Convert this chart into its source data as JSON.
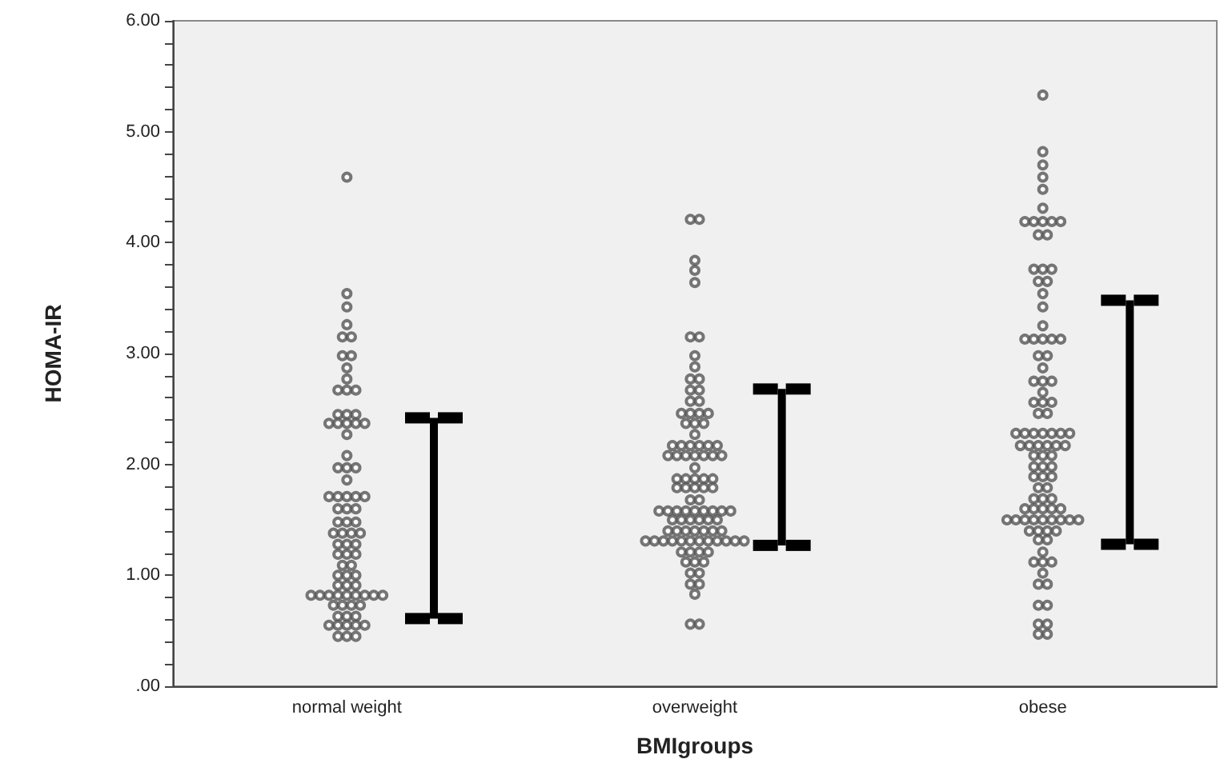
{
  "chart_data": {
    "type": "scatter",
    "xlabel": "BMIgroups",
    "ylabel": "HOMA-IR",
    "categories": [
      "normal weight",
      "overweight",
      "obese"
    ],
    "ylim": [
      0,
      6
    ],
    "yticks": [
      {
        "value": 0,
        "label": ".00"
      },
      {
        "value": 0.2,
        "label": null
      },
      {
        "value": 0.4,
        "label": null
      },
      {
        "value": 0.6,
        "label": null
      },
      {
        "value": 0.8,
        "label": null
      },
      {
        "value": 1,
        "label": "1.00"
      },
      {
        "value": 1.2,
        "label": null
      },
      {
        "value": 1.4,
        "label": null
      },
      {
        "value": 1.6,
        "label": null
      },
      {
        "value": 1.8,
        "label": null
      },
      {
        "value": 2,
        "label": "2.00"
      },
      {
        "value": 2.2,
        "label": null
      },
      {
        "value": 2.4,
        "label": null
      },
      {
        "value": 2.6,
        "label": null
      },
      {
        "value": 2.8,
        "label": null
      },
      {
        "value": 3,
        "label": "3.00"
      },
      {
        "value": 3.2,
        "label": null
      },
      {
        "value": 3.4,
        "label": null
      },
      {
        "value": 3.6,
        "label": null
      },
      {
        "value": 3.8,
        "label": null
      },
      {
        "value": 4,
        "label": "4.00"
      },
      {
        "value": 4.2,
        "label": null
      },
      {
        "value": 4.4,
        "label": null
      },
      {
        "value": 4.6,
        "label": null
      },
      {
        "value": 4.8,
        "label": null
      },
      {
        "value": 5,
        "label": "5.00"
      },
      {
        "value": 5.2,
        "label": null
      },
      {
        "value": 5.4,
        "label": null
      },
      {
        "value": 5.6,
        "label": null
      },
      {
        "value": 5.8,
        "label": null
      },
      {
        "value": 6,
        "label": "6.00"
      }
    ],
    "grid": false,
    "series": [
      {
        "marker": "circle",
        "color": "#555555",
        "x": [
          "normal weight",
          "normal weight",
          "normal weight",
          "normal weight",
          "normal weight",
          "normal weight",
          "normal weight",
          "normal weight",
          "normal weight",
          "normal weight",
          "normal weight",
          "normal weight",
          "normal weight",
          "normal weight",
          "normal weight",
          "normal weight",
          "normal weight",
          "normal weight",
          "normal weight",
          "normal weight",
          "normal weight",
          "normal weight",
          "normal weight",
          "normal weight",
          "normal weight",
          "normal weight",
          "normal weight",
          "normal weight",
          "normal weight",
          "normal weight",
          "normal weight",
          "normal weight",
          "normal weight",
          "normal weight",
          "normal weight",
          "normal weight",
          "normal weight",
          "normal weight",
          "normal weight",
          "normal weight",
          "normal weight",
          "normal weight",
          "normal weight",
          "normal weight",
          "normal weight",
          "normal weight",
          "normal weight",
          "normal weight",
          "normal weight",
          "normal weight",
          "normal weight",
          "normal weight",
          "normal weight",
          "normal weight",
          "normal weight",
          "normal weight",
          "normal weight",
          "normal weight",
          "normal weight",
          "normal weight",
          "normal weight",
          "normal weight",
          "normal weight",
          "normal weight",
          "normal weight",
          "normal weight",
          "normal weight",
          "normal weight",
          "normal weight",
          "normal weight",
          "normal weight",
          "normal weight",
          "normal weight",
          "normal weight",
          "normal weight",
          "normal weight",
          "normal weight",
          "normal weight",
          "normal weight",
          "normal weight",
          "overweight",
          "overweight",
          "overweight",
          "overweight",
          "overweight",
          "overweight",
          "overweight",
          "overweight",
          "overweight",
          "overweight",
          "overweight",
          "overweight",
          "overweight",
          "overweight",
          "overweight",
          "overweight",
          "overweight",
          "overweight",
          "overweight",
          "overweight",
          "overweight",
          "overweight",
          "overweight",
          "overweight",
          "overweight",
          "overweight",
          "overweight",
          "overweight",
          "overweight",
          "overweight",
          "overweight",
          "overweight",
          "overweight",
          "overweight",
          "overweight",
          "overweight",
          "overweight",
          "overweight",
          "overweight",
          "overweight",
          "overweight",
          "overweight",
          "overweight",
          "overweight",
          "overweight",
          "overweight",
          "overweight",
          "overweight",
          "overweight",
          "overweight",
          "overweight",
          "overweight",
          "overweight",
          "overweight",
          "overweight",
          "overweight",
          "overweight",
          "overweight",
          "overweight",
          "overweight",
          "overweight",
          "overweight",
          "overweight",
          "overweight",
          "overweight",
          "overweight",
          "overweight",
          "overweight",
          "overweight",
          "overweight",
          "overweight",
          "overweight",
          "overweight",
          "overweight",
          "overweight",
          "overweight",
          "overweight",
          "overweight",
          "overweight",
          "overweight",
          "overweight",
          "overweight",
          "overweight",
          "overweight",
          "overweight",
          "overweight",
          "overweight",
          "overweight",
          "overweight",
          "overweight",
          "overweight",
          "overweight",
          "overweight",
          "overweight",
          "overweight",
          "overweight",
          "overweight",
          "obese",
          "obese",
          "obese",
          "obese",
          "obese",
          "obese",
          "obese",
          "obese",
          "obese",
          "obese",
          "obese",
          "obese",
          "obese",
          "obese",
          "obese",
          "obese",
          "obese",
          "obese",
          "obese",
          "obese",
          "obese",
          "obese",
          "obese",
          "obese",
          "obese",
          "obese",
          "obese",
          "obese",
          "obese",
          "obese",
          "obese",
          "obese",
          "obese",
          "obese",
          "obese",
          "obese",
          "obese",
          "obese",
          "obese",
          "obese",
          "obese",
          "obese",
          "obese",
          "obese",
          "obese",
          "obese",
          "obese",
          "obese",
          "obese",
          "obese",
          "obese",
          "obese",
          "obese",
          "obese",
          "obese",
          "obese",
          "obese",
          "obese",
          "obese",
          "obese",
          "obese",
          "obese",
          "obese",
          "obese",
          "obese",
          "obese",
          "obese",
          "obese",
          "obese",
          "obese",
          "obese",
          "obese",
          "obese",
          "obese",
          "obese",
          "obese",
          "obese",
          "obese",
          "obese",
          "obese",
          "obese",
          "obese",
          "obese",
          "obese",
          "obese",
          "obese",
          "obese",
          "obese",
          "obese",
          "obese",
          "obese",
          "obese",
          "obese",
          "obese",
          "obese",
          "obese",
          "obese",
          "obese"
        ],
        "values": [
          4.59,
          3.54,
          3.42,
          3.26,
          3.15,
          3.15,
          2.98,
          2.98,
          2.87,
          2.77,
          2.67,
          2.67,
          2.67,
          2.45,
          2.45,
          2.45,
          2.37,
          2.37,
          2.37,
          2.37,
          2.37,
          2.27,
          2.08,
          1.97,
          1.97,
          1.97,
          1.86,
          1.71,
          1.71,
          1.71,
          1.71,
          1.71,
          1.6,
          1.6,
          1.6,
          1.48,
          1.48,
          1.48,
          1.38,
          1.38,
          1.38,
          1.38,
          1.28,
          1.28,
          1.28,
          1.19,
          1.19,
          1.19,
          1.09,
          1.09,
          1.0,
          1.0,
          1.0,
          0.91,
          0.91,
          0.91,
          0.82,
          0.82,
          0.82,
          0.82,
          0.82,
          0.82,
          0.82,
          0.82,
          0.82,
          0.73,
          0.73,
          0.73,
          0.73,
          0.63,
          0.63,
          0.63,
          0.55,
          0.55,
          0.55,
          0.55,
          0.55,
          0.45,
          0.45,
          0.45,
          4.21,
          4.21,
          3.84,
          3.75,
          3.64,
          3.15,
          3.15,
          2.98,
          2.88,
          2.77,
          2.77,
          2.67,
          2.67,
          2.57,
          2.57,
          2.46,
          2.46,
          2.46,
          2.46,
          2.37,
          2.37,
          2.37,
          2.27,
          2.17,
          2.17,
          2.17,
          2.17,
          2.17,
          2.17,
          2.08,
          2.08,
          2.08,
          2.08,
          2.08,
          2.08,
          2.08,
          1.97,
          1.87,
          1.87,
          1.87,
          1.87,
          1.87,
          1.79,
          1.79,
          1.79,
          1.79,
          1.79,
          1.68,
          1.68,
          1.58,
          1.58,
          1.58,
          1.58,
          1.58,
          1.58,
          1.58,
          1.58,
          1.58,
          1.5,
          1.5,
          1.5,
          1.5,
          1.5,
          1.5,
          1.4,
          1.4,
          1.4,
          1.4,
          1.4,
          1.4,
          1.4,
          1.31,
          1.31,
          1.31,
          1.31,
          1.31,
          1.31,
          1.31,
          1.31,
          1.31,
          1.31,
          1.31,
          1.31,
          1.21,
          1.21,
          1.21,
          1.21,
          1.12,
          1.12,
          1.12,
          1.02,
          1.02,
          0.92,
          0.92,
          0.83,
          0.56,
          0.56,
          5.33,
          4.82,
          4.7,
          4.59,
          4.48,
          4.31,
          4.19,
          4.19,
          4.19,
          4.19,
          4.19,
          4.07,
          4.07,
          3.76,
          3.76,
          3.76,
          3.65,
          3.65,
          3.54,
          3.42,
          3.25,
          3.13,
          3.13,
          3.13,
          3.13,
          3.13,
          2.98,
          2.98,
          2.87,
          2.75,
          2.75,
          2.75,
          2.65,
          2.56,
          2.56,
          2.56,
          2.46,
          2.46,
          2.28,
          2.28,
          2.28,
          2.28,
          2.28,
          2.28,
          2.28,
          2.17,
          2.17,
          2.17,
          2.17,
          2.17,
          2.17,
          2.08,
          2.08,
          2.08,
          1.98,
          1.98,
          1.98,
          1.89,
          1.89,
          1.89,
          1.79,
          1.79,
          1.69,
          1.69,
          1.69,
          1.6,
          1.6,
          1.6,
          1.6,
          1.6,
          1.5,
          1.5,
          1.5,
          1.5,
          1.5,
          1.5,
          1.5,
          1.5,
          1.5,
          1.4,
          1.4,
          1.4,
          1.4,
          1.32,
          1.32,
          1.21,
          1.12,
          1.12,
          1.12,
          1.02,
          0.92,
          0.92,
          0.73,
          0.73,
          0.56,
          0.56,
          0.47,
          0.47
        ]
      },
      {
        "type": "bar",
        "color": "#000000",
        "x": [
          "normal weight",
          "overweight",
          "obese"
        ],
        "base": [
          0.61,
          1.27,
          1.28
        ],
        "values": [
          1.81,
          1.41,
          2.2
        ]
      }
    ]
  }
}
